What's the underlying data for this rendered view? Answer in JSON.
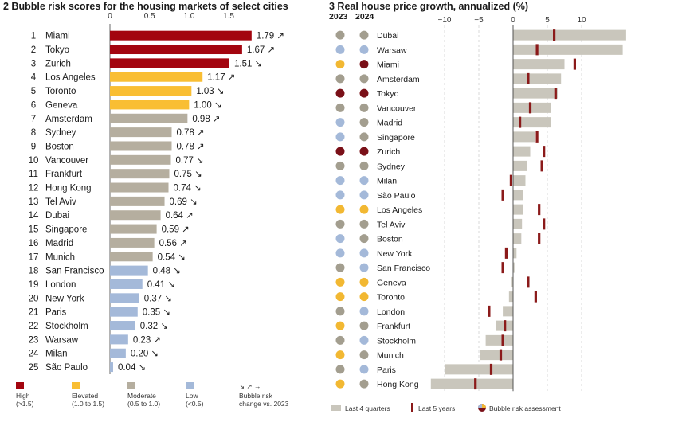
{
  "chart_data": [
    {
      "type": "bar",
      "title": "2 Bubble risk scores for the housing markets of select cities",
      "xlim": [
        0,
        1.85
      ],
      "ticks": [
        "0",
        "0.5",
        "1.0",
        "1.5"
      ],
      "tick_values": [
        0,
        0.5,
        1.0,
        1.5
      ],
      "categories_rank": [
        1,
        2,
        3,
        4,
        5,
        6,
        7,
        8,
        9,
        10,
        11,
        12,
        13,
        14,
        15,
        16,
        17,
        18,
        19,
        20,
        21,
        22,
        23,
        24,
        25
      ],
      "rows": [
        {
          "rank": "1",
          "city": "Miami",
          "value": 1.79,
          "label": "1.79",
          "trend": "up",
          "risk": "high"
        },
        {
          "rank": "2",
          "city": "Tokyo",
          "value": 1.67,
          "label": "1.67",
          "trend": "up",
          "risk": "high"
        },
        {
          "rank": "3",
          "city": "Zurich",
          "value": 1.51,
          "label": "1.51",
          "trend": "down",
          "risk": "high"
        },
        {
          "rank": "4",
          "city": "Los Angeles",
          "value": 1.17,
          "label": "1.17",
          "trend": "up",
          "risk": "elevated"
        },
        {
          "rank": "5",
          "city": "Toronto",
          "value": 1.03,
          "label": "1.03",
          "trend": "down",
          "risk": "elevated"
        },
        {
          "rank": "6",
          "city": "Geneva",
          "value": 1.0,
          "label": "1.00",
          "trend": "down",
          "risk": "elevated"
        },
        {
          "rank": "7",
          "city": "Amsterdam",
          "value": 0.98,
          "label": "0.98",
          "trend": "up",
          "risk": "moderate"
        },
        {
          "rank": "8",
          "city": "Sydney",
          "value": 0.78,
          "label": "0.78",
          "trend": "up",
          "risk": "moderate"
        },
        {
          "rank": "9",
          "city": "Boston",
          "value": 0.78,
          "label": "0.78",
          "trend": "up",
          "risk": "moderate"
        },
        {
          "rank": "10",
          "city": "Vancouver",
          "value": 0.77,
          "label": "0.77",
          "trend": "down",
          "risk": "moderate"
        },
        {
          "rank": "11",
          "city": "Frankfurt",
          "value": 0.75,
          "label": "0.75",
          "trend": "down",
          "risk": "moderate"
        },
        {
          "rank": "12",
          "city": "Hong Kong",
          "value": 0.74,
          "label": "0.74",
          "trend": "down",
          "risk": "moderate"
        },
        {
          "rank": "13",
          "city": "Tel Aviv",
          "value": 0.69,
          "label": "0.69",
          "trend": "down",
          "risk": "moderate"
        },
        {
          "rank": "14",
          "city": "Dubai",
          "value": 0.64,
          "label": "0.64",
          "trend": "up",
          "risk": "moderate"
        },
        {
          "rank": "15",
          "city": "Singapore",
          "value": 0.59,
          "label": "0.59",
          "trend": "up",
          "risk": "moderate"
        },
        {
          "rank": "16",
          "city": "Madrid",
          "value": 0.56,
          "label": "0.56",
          "trend": "up",
          "risk": "moderate"
        },
        {
          "rank": "17",
          "city": "Munich",
          "value": 0.54,
          "label": "0.54",
          "trend": "down",
          "risk": "moderate"
        },
        {
          "rank": "18",
          "city": "San Francisco",
          "value": 0.48,
          "label": "0.48",
          "trend": "down",
          "risk": "low"
        },
        {
          "rank": "19",
          "city": "London",
          "value": 0.41,
          "label": "0.41",
          "trend": "down",
          "risk": "low"
        },
        {
          "rank": "20",
          "city": "New York",
          "value": 0.37,
          "label": "0.37",
          "trend": "down",
          "risk": "low"
        },
        {
          "rank": "21",
          "city": "Paris",
          "value": 0.35,
          "label": "0.35",
          "trend": "down",
          "risk": "low"
        },
        {
          "rank": "22",
          "city": "Stockholm",
          "value": 0.32,
          "label": "0.32",
          "trend": "down",
          "risk": "low"
        },
        {
          "rank": "23",
          "city": "Warsaw",
          "value": 0.23,
          "label": "0.23",
          "trend": "up",
          "risk": "low"
        },
        {
          "rank": "24",
          "city": "Milan",
          "value": 0.2,
          "label": "0.20",
          "trend": "down",
          "risk": "low"
        },
        {
          "rank": "25",
          "city": "São Paulo",
          "value": 0.04,
          "label": "0.04",
          "trend": "down",
          "risk": "low"
        }
      ],
      "legend": [
        {
          "key": "high",
          "label": "High",
          "range": "(>1.5)"
        },
        {
          "key": "elevated",
          "label": "Elevated",
          "range": "(1.0 to 1.5)"
        },
        {
          "key": "moderate",
          "label": "Moderate",
          "range": "(0.5 to 1.0)"
        },
        {
          "key": "low",
          "label": "Low",
          "range": "(<0.5)"
        }
      ],
      "trend_legend": {
        "line1": "Bubble risk",
        "line2": "change vs. 2023"
      }
    },
    {
      "type": "bar",
      "title": "3 Real house price growth, annualized (%)",
      "xlim": [
        -12,
        17
      ],
      "ticks": [
        "−10",
        "−5",
        "0",
        "5",
        "10"
      ],
      "tick_values": [
        -10,
        -5,
        0,
        5,
        10
      ],
      "year_labels": [
        "2023",
        "2024"
      ],
      "rows": [
        {
          "city": "Dubai",
          "last4q": 16.5,
          "last5y": 6.0,
          "risk2023": "moderate",
          "risk2024": "moderate"
        },
        {
          "city": "Warsaw",
          "last4q": 16.0,
          "last5y": 3.5,
          "risk2023": "low",
          "risk2024": "low"
        },
        {
          "city": "Miami",
          "last4q": 7.5,
          "last5y": 9.0,
          "risk2023": "elevated",
          "risk2024": "high"
        },
        {
          "city": "Amsterdam",
          "last4q": 7.0,
          "last5y": 2.2,
          "risk2023": "moderate",
          "risk2024": "moderate"
        },
        {
          "city": "Tokyo",
          "last4q": 6.5,
          "last5y": 6.2,
          "risk2023": "high",
          "risk2024": "high"
        },
        {
          "city": "Vancouver",
          "last4q": 5.5,
          "last5y": 2.5,
          "risk2023": "moderate",
          "risk2024": "moderate"
        },
        {
          "city": "Madrid",
          "last4q": 5.5,
          "last5y": 1.0,
          "risk2023": "low",
          "risk2024": "moderate"
        },
        {
          "city": "Singapore",
          "last4q": 3.2,
          "last5y": 3.5,
          "risk2023": "low",
          "risk2024": "moderate"
        },
        {
          "city": "Zurich",
          "last4q": 2.5,
          "last5y": 4.5,
          "risk2023": "high",
          "risk2024": "high"
        },
        {
          "city": "Sydney",
          "last4q": 2.0,
          "last5y": 4.2,
          "risk2023": "moderate",
          "risk2024": "moderate"
        },
        {
          "city": "Milan",
          "last4q": 1.8,
          "last5y": -0.3,
          "risk2023": "low",
          "risk2024": "low"
        },
        {
          "city": "São Paulo",
          "last4q": 1.5,
          "last5y": -1.5,
          "risk2023": "low",
          "risk2024": "low"
        },
        {
          "city": "Los Angeles",
          "last4q": 1.4,
          "last5y": 3.8,
          "risk2023": "elevated",
          "risk2024": "elevated"
        },
        {
          "city": "Tel Aviv",
          "last4q": 1.3,
          "last5y": 4.5,
          "risk2023": "moderate",
          "risk2024": "moderate"
        },
        {
          "city": "Boston",
          "last4q": 1.2,
          "last5y": 3.8,
          "risk2023": "low",
          "risk2024": "moderate"
        },
        {
          "city": "New York",
          "last4q": 0.5,
          "last5y": -1.0,
          "risk2023": "low",
          "risk2024": "low"
        },
        {
          "city": "San Francisco",
          "last4q": 0.2,
          "last5y": -1.5,
          "risk2023": "moderate",
          "risk2024": "low"
        },
        {
          "city": "Geneva",
          "last4q": -0.2,
          "last5y": 2.2,
          "risk2023": "elevated",
          "risk2024": "elevated"
        },
        {
          "city": "Toronto",
          "last4q": -0.6,
          "last5y": 3.3,
          "risk2023": "elevated",
          "risk2024": "elevated"
        },
        {
          "city": "London",
          "last4q": -1.5,
          "last5y": -3.5,
          "risk2023": "moderate",
          "risk2024": "low"
        },
        {
          "city": "Frankfurt",
          "last4q": -2.5,
          "last5y": -1.2,
          "risk2023": "elevated",
          "risk2024": "moderate"
        },
        {
          "city": "Stockholm",
          "last4q": -4.0,
          "last5y": -1.5,
          "risk2023": "moderate",
          "risk2024": "low"
        },
        {
          "city": "Munich",
          "last4q": -4.8,
          "last5y": -1.8,
          "risk2023": "elevated",
          "risk2024": "moderate"
        },
        {
          "city": "Paris",
          "last4q": -10.0,
          "last5y": -3.2,
          "risk2023": "moderate",
          "risk2024": "low"
        },
        {
          "city": "Hong Kong",
          "last4q": -12.0,
          "last5y": -5.5,
          "risk2023": "elevated",
          "risk2024": "moderate"
        }
      ],
      "legend": [
        {
          "key": "last4q",
          "label": "Last 4 quarters"
        },
        {
          "key": "last5y",
          "label": "Last 5 years"
        },
        {
          "key": "risk",
          "label": "Bubble risk assessment"
        }
      ]
    }
  ],
  "colors": {
    "high": "#a3050f",
    "elevated": "#f9be33",
    "moderate": "#b5ae9f",
    "low": "#a4b9d9",
    "bar_right": "#c9c6bc",
    "last5y": "#8b1a1a",
    "dot_moderate": "#a39e8f",
    "dot_high": "#7a1018",
    "dot_low": "#a4b9d9",
    "dot_elevated": "#f2b832",
    "axis": "#444444",
    "grid": "#bfbfbf"
  }
}
